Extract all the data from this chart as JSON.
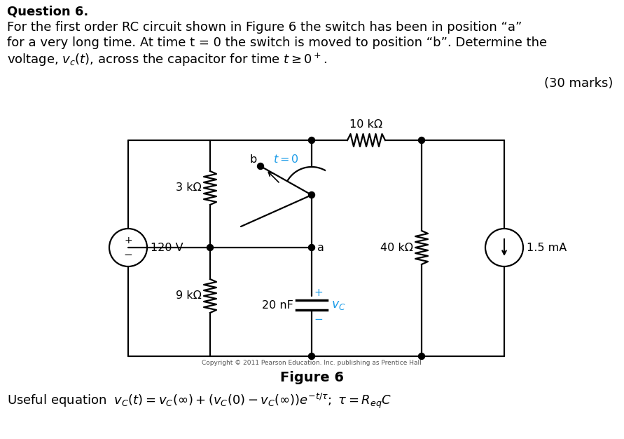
{
  "title_line1": "Question 6.",
  "title_line2": "For the first order RC circuit shown in Figure 6 the switch has been in position “a”",
  "title_line3": "for a very long time. At time t = 0 the switch is moved to position “b”. Determine the",
  "title_line4": "voltage, vc(t), across the capacitor for time t ≥ 0⁺.",
  "marks": "(30 marks)",
  "figure_label": "Figure 6",
  "copyright": "Copyright © 2011 Pearson Education. Inc. publishing as Prentice Hall",
  "bg_color": "#ffffff",
  "text_color": "#000000",
  "cyan_color": "#1e9de8",
  "label_3k": "3 kΩ",
  "label_9k": "9 kΩ",
  "label_10k": "10 kΩ",
  "label_40k": "40 kΩ",
  "label_20nF": "20 nF",
  "label_120V": "120 V",
  "label_15mA": "1.5 mA",
  "label_a": "a",
  "label_b": "b",
  "label_t0": "t = 0",
  "fs_text": 13.0,
  "fs_label": 11.5,
  "lw_circuit": 1.6
}
